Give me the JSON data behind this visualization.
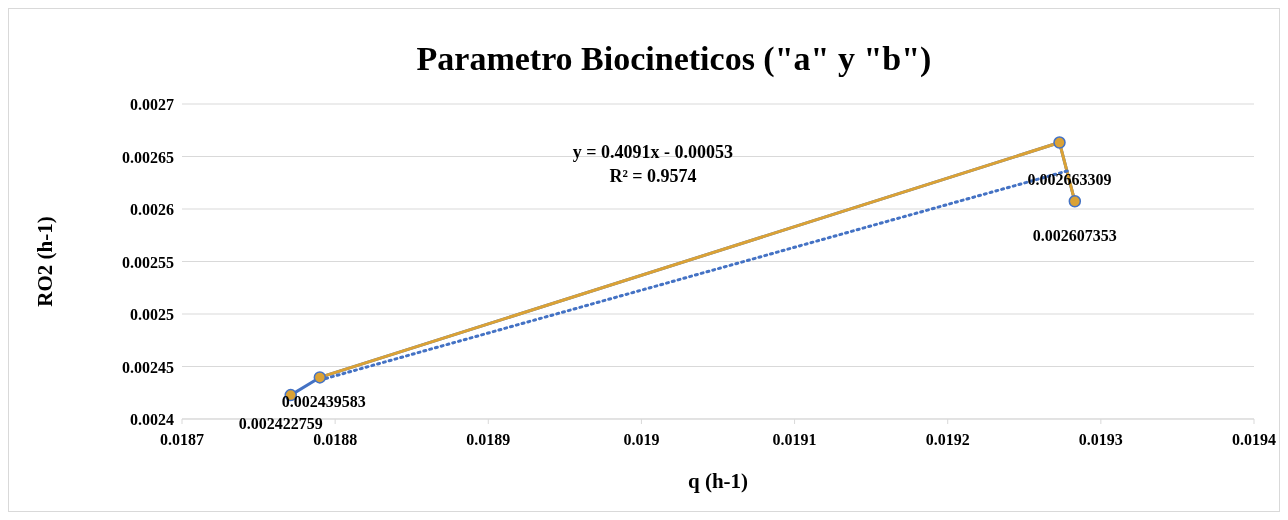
{
  "chart_data": {
    "type": "scatter",
    "title": "Parametro Biocineticos (\"a\" y \"b\")",
    "xlabel": "q (h-1)",
    "ylabel": "RO2 (h-1)",
    "xlim": [
      0.0187,
      0.0194
    ],
    "xticks": [
      0.0187,
      0.0188,
      0.0189,
      0.019,
      0.0191,
      0.0192,
      0.0193,
      0.0194
    ],
    "ylim": [
      0.0024,
      0.0027
    ],
    "yticks": [
      0.0024,
      0.00245,
      0.0025,
      0.00255,
      0.0026,
      0.00265,
      0.0027
    ],
    "grid": "y",
    "marker": "circle",
    "annotations": [
      "y = 0.4091x - 0.00053",
      "R² = 0.9574"
    ],
    "series": [
      {
        "color": "#4472c4",
        "x": [
          0.018771,
          0.01879,
          0.019273,
          0.019283
        ],
        "values": [
          0.002422759,
          0.002439583,
          0.002663309,
          0.002607353
        ],
        "value_labels": [
          "0.002422759",
          "0.002439583",
          "0.002663309",
          "0.002607353"
        ]
      },
      {
        "type": "line",
        "color": "#dba235",
        "marker": "none",
        "x": [
          0.01879,
          0.019273,
          0.019283
        ],
        "values": [
          0.002439583,
          0.002663309,
          0.002607353
        ]
      },
      {
        "type": "line",
        "color": "#4472c4",
        "marker": "none",
        "line_style": "dotted",
        "x": [
          0.01879,
          0.01928
        ],
        "values": [
          0.002437,
          0.002637
        ]
      }
    ]
  }
}
